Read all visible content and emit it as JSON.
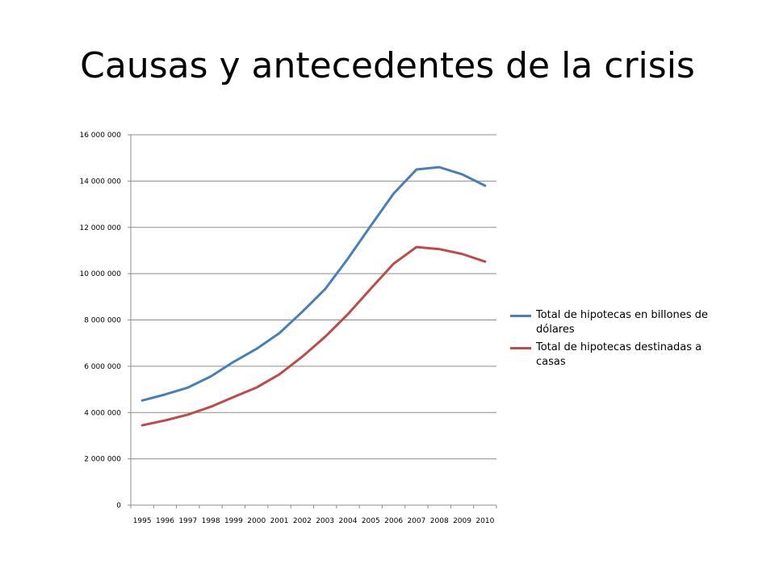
{
  "slide": {
    "title": "Causas y antecedentes de la crisis"
  },
  "chart_data": {
    "type": "line",
    "title": "",
    "xlabel": "",
    "ylabel": "",
    "x": [
      "1995",
      "1996",
      "1997",
      "1998",
      "1999",
      "2000",
      "2001",
      "2002",
      "2003",
      "2004",
      "2005",
      "2006",
      "2007",
      "2008",
      "2009",
      "2010"
    ],
    "ylim": [
      0,
      16000000
    ],
    "yticks": [
      0,
      2000000,
      4000000,
      6000000,
      8000000,
      10000000,
      12000000,
      14000000,
      16000000
    ],
    "ytick_labels": [
      "0",
      "2 000 000",
      "4 000 000",
      "6 000 000",
      "8 000 000",
      "10 000 000",
      "12 000 000",
      "14 000 000",
      "16 000 000"
    ],
    "grid": "horizontal",
    "legend_position": "right",
    "series": [
      {
        "name": "Total de hipotecas en billones de dólares",
        "color": "#4a7ebb",
        "values": [
          4520000,
          4780000,
          5080000,
          5560000,
          6190000,
          6750000,
          7430000,
          8350000,
          9330000,
          10650000,
          12070000,
          13460000,
          14500000,
          14600000,
          14290000,
          13800000
        ]
      },
      {
        "name": "Total de hipotecas destinadas a casas",
        "color": "#be4b48",
        "values": [
          3450000,
          3660000,
          3910000,
          4250000,
          4670000,
          5080000,
          5650000,
          6410000,
          7270000,
          8250000,
          9350000,
          10430000,
          11150000,
          11060000,
          10850000,
          10520000
        ]
      }
    ]
  }
}
